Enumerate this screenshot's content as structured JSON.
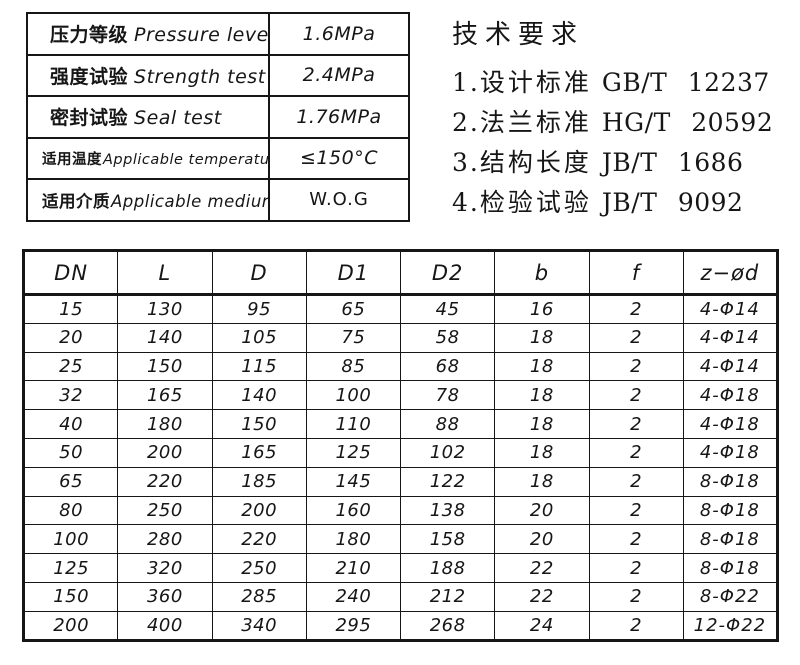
{
  "colors": {
    "ink": "#161616",
    "background": "#ffffff"
  },
  "spec_table": {
    "rows": [
      {
        "zh": "压力等级",
        "en": "Pressure levels",
        "value": "1.6MPa"
      },
      {
        "zh": "强度试验",
        "en": "Strength test",
        "value": "2.4MPa"
      },
      {
        "zh": "密封试验",
        "en": "Seal test",
        "value": "1.76MPa"
      },
      {
        "zh": "适用温度",
        "en": "Applicable temperature",
        "value": "≤150°C"
      },
      {
        "zh": "适用介质",
        "en": "Applicable medium",
        "value": "W.O.G"
      }
    ]
  },
  "tech_requirements": {
    "title": "技术要求",
    "items": [
      {
        "num": "1.",
        "label": "设计标准",
        "code": "GB/T 12237"
      },
      {
        "num": "2.",
        "label": "法兰标准",
        "code": "HG/T 20592"
      },
      {
        "num": "3.",
        "label": "结构长度",
        "code": "JB/T 1686"
      },
      {
        "num": "4.",
        "label": "检验试验",
        "code": "JB/T 9092"
      }
    ]
  },
  "dimension_table": {
    "headers": [
      "DN",
      "L",
      "D",
      "D1",
      "D2",
      "b",
      "f",
      "z−ød"
    ],
    "rows": [
      [
        "15",
        "130",
        "95",
        "65",
        "45",
        "16",
        "2",
        "4-Φ14"
      ],
      [
        "20",
        "140",
        "105",
        "75",
        "58",
        "18",
        "2",
        "4-Φ14"
      ],
      [
        "25",
        "150",
        "115",
        "85",
        "68",
        "18",
        "2",
        "4-Φ14"
      ],
      [
        "32",
        "165",
        "140",
        "100",
        "78",
        "18",
        "2",
        "4-Φ18"
      ],
      [
        "40",
        "180",
        "150",
        "110",
        "88",
        "18",
        "2",
        "4-Φ18"
      ],
      [
        "50",
        "200",
        "165",
        "125",
        "102",
        "18",
        "2",
        "4-Φ18"
      ],
      [
        "65",
        "220",
        "185",
        "145",
        "122",
        "18",
        "2",
        "8-Φ18"
      ],
      [
        "80",
        "250",
        "200",
        "160",
        "138",
        "20",
        "2",
        "8-Φ18"
      ],
      [
        "100",
        "280",
        "220",
        "180",
        "158",
        "20",
        "2",
        "8-Φ18"
      ],
      [
        "125",
        "320",
        "250",
        "210",
        "188",
        "22",
        "2",
        "8-Φ18"
      ],
      [
        "150",
        "360",
        "285",
        "240",
        "212",
        "22",
        "2",
        "8-Φ22"
      ],
      [
        "200",
        "400",
        "340",
        "295",
        "268",
        "24",
        "2",
        "12-Φ22"
      ]
    ]
  }
}
